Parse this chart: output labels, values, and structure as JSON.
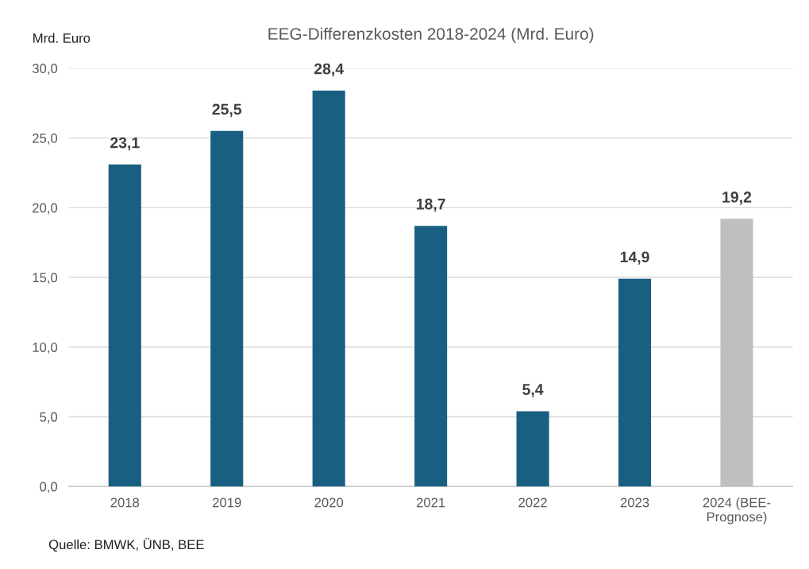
{
  "chart_data": {
    "type": "bar",
    "title": "EEG-Differenzkosten 2018-2024 (Mrd. Euro)",
    "ylabel": "Mrd. Euro",
    "categories": [
      "2018",
      "2019",
      "2020",
      "2021",
      "2022",
      "2023",
      "2024 (BEE-\nPrognose)"
    ],
    "values": [
      23.1,
      25.5,
      28.4,
      18.7,
      5.4,
      14.9,
      19.2
    ],
    "value_labels": [
      "23,1",
      "25,5",
      "28,4",
      "18,7",
      "5,4",
      "14,9",
      "19,2"
    ],
    "colors": [
      "#195f82",
      "#195f82",
      "#195f82",
      "#195f82",
      "#195f82",
      "#195f82",
      "#bfbfbf"
    ],
    "ylim": [
      0,
      30
    ],
    "yticks": [
      {
        "value": 0,
        "label": "0,0"
      },
      {
        "value": 5,
        "label": "5,0"
      },
      {
        "value": 10,
        "label": "10,0"
      },
      {
        "value": 15,
        "label": "15,0"
      },
      {
        "value": 20,
        "label": "20,0"
      },
      {
        "value": 25,
        "label": "25,0"
      },
      {
        "value": 30,
        "label": "30,0"
      }
    ],
    "grid": "y",
    "annotations": [
      "Quelle: BMWK, ÜNB, BEE"
    ]
  }
}
